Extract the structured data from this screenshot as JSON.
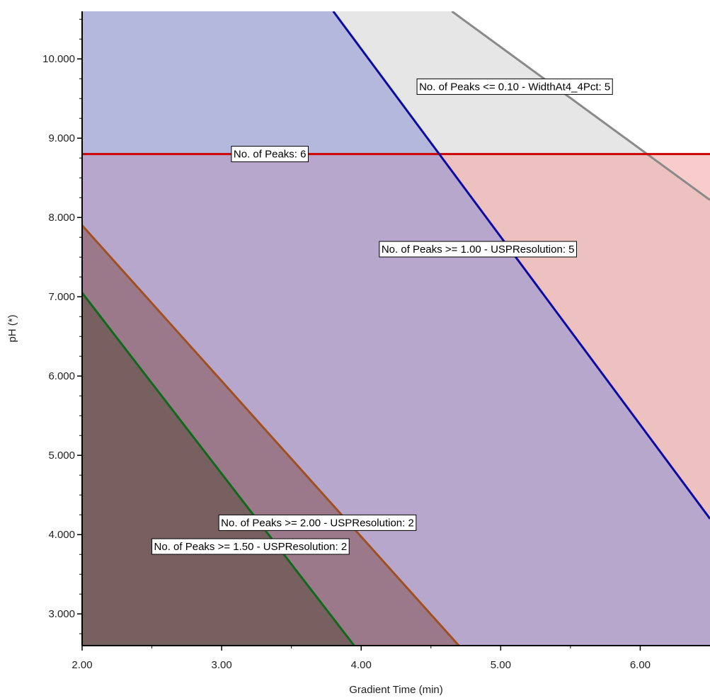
{
  "chart_data": {
    "type": "area",
    "xlabel": "Gradient Time (min)",
    "ylabel": "pH (*)",
    "xlim": [
      2.0,
      6.5
    ],
    "ylim": [
      2.6,
      10.6
    ],
    "x_ticks": [
      "2.00",
      "3.00",
      "4.00",
      "5.00",
      "6.00"
    ],
    "x_tick_values": [
      2,
      3,
      4,
      5,
      6
    ],
    "y_ticks": [
      "3.000",
      "4.000",
      "5.000",
      "6.000",
      "7.000",
      "8.000",
      "9.000",
      "10.000"
    ],
    "y_tick_values": [
      3,
      4,
      5,
      6,
      7,
      8,
      9,
      10
    ],
    "grid": false,
    "regions": [
      {
        "label": "No. of Peaks <= 0.10 - WidthAt4_4Pct: 5",
        "boundary": [
          [
            4.65,
            10.6
          ],
          [
            6.5,
            8.22
          ]
        ],
        "fill": "#d2d2d2",
        "line_color": "#8a8a8a",
        "label_at": [
          4.4,
          9.65
        ]
      },
      {
        "label": "No. of Peaks: 6",
        "boundary": [
          [
            2.0,
            8.8
          ],
          [
            6.5,
            8.8
          ]
        ],
        "fill": "#f4a3a3",
        "line_color": "#cc0000",
        "label_at": [
          3.07,
          8.8
        ]
      },
      {
        "label": "No. of Peaks >= 1.00 - USPResolution: 5",
        "boundary": [
          [
            3.8,
            10.6
          ],
          [
            6.5,
            4.2
          ]
        ],
        "fill": "#8a91d6",
        "line_color": "#0a0aa8",
        "label_at": [
          4.13,
          7.6
        ]
      },
      {
        "label": "No. of Peaks >= 2.00 - USPResolution: 2",
        "boundary": [
          [
            2.0,
            7.9
          ],
          [
            4.7,
            2.6
          ]
        ],
        "fill": "#875255",
        "line_color": "#a0501e",
        "label_at": [
          2.98,
          4.15
        ]
      },
      {
        "label": "No. of Peaks >= 1.50 - USPResolution: 2",
        "boundary": [
          [
            2.0,
            7.05
          ],
          [
            3.95,
            2.6
          ]
        ],
        "fill": "#5a4c3c",
        "line_color": "#0e6a1a",
        "label_at": [
          2.5,
          3.85
        ]
      }
    ]
  }
}
